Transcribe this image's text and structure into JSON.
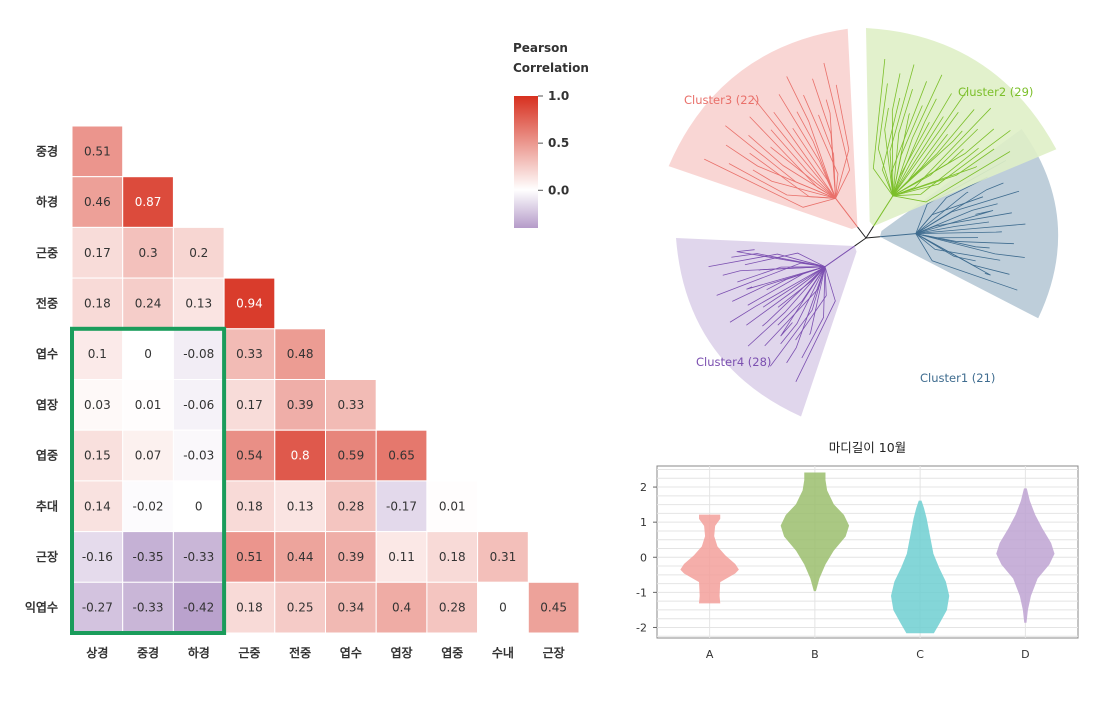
{
  "chart_data": [
    {
      "type": "heatmap",
      "title": "",
      "legend": {
        "title_line1": "Pearson",
        "title_line2": "Correlation",
        "ticks": [
          "1.0",
          "0.5",
          "0.0"
        ],
        "range": [
          -0.4,
          1.0
        ],
        "placement": "top-right"
      },
      "row_labels": [
        "중경",
        "하경",
        "근중",
        "전중",
        "엽수",
        "엽장",
        "엽중",
        "추대",
        "근장",
        "익엽수"
      ],
      "col_labels": [
        "상경",
        "중경",
        "하경",
        "근중",
        "전중",
        "엽수",
        "엽장",
        "엽중",
        "수내",
        "근장"
      ],
      "values": [
        [
          0.51
        ],
        [
          0.46,
          0.87
        ],
        [
          0.17,
          0.3,
          0.2
        ],
        [
          0.18,
          0.24,
          0.13,
          0.94
        ],
        [
          0.1,
          0,
          -0.08,
          0.33,
          0.48
        ],
        [
          0.03,
          0.01,
          -0.06,
          0.17,
          0.39,
          0.33
        ],
        [
          0.15,
          0.07,
          -0.03,
          0.54,
          0.8,
          0.59,
          0.65
        ],
        [
          0.14,
          -0.02,
          0,
          0.18,
          0.13,
          0.28,
          -0.17,
          0.01
        ],
        [
          -0.16,
          -0.35,
          -0.33,
          0.51,
          0.44,
          0.39,
          0.11,
          0.18,
          0.31
        ],
        [
          -0.27,
          -0.33,
          -0.42,
          0.18,
          0.25,
          0.34,
          0.4,
          0.28,
          0,
          0.45
        ]
      ],
      "highlight": {
        "rows": [
          4,
          9
        ],
        "cols": [
          0,
          2
        ],
        "color": "#1a9c5b"
      },
      "colors": {
        "high": "#d7301f",
        "mid": "#ffffff",
        "low": "#b59bc9"
      }
    },
    {
      "type": "dendrogram",
      "layout": "circular",
      "clusters": [
        {
          "name": "Cluster1 (21)",
          "color": "#3f6c8f",
          "fill": "#b7c9d6",
          "count": 21
        },
        {
          "name": "Cluster2 (29)",
          "color": "#7cbf2a",
          "fill": "#dff0c6",
          "count": 29
        },
        {
          "name": "Cluster3 (22)",
          "color": "#e9706a",
          "fill": "#f8d2cf",
          "count": 22
        },
        {
          "name": "Cluster4 (28)",
          "color": "#7b4fb0",
          "fill": "#ddd2ea",
          "count": 28
        }
      ]
    },
    {
      "type": "violin",
      "title": "마디길이 10월",
      "categories": [
        "A",
        "B",
        "C",
        "D"
      ],
      "ylim": [
        -2.3,
        2.6
      ],
      "yticks": [
        2,
        1,
        0,
        -1,
        -2
      ],
      "grid": true,
      "series": [
        {
          "category": "A",
          "color": "#f4a09c",
          "min": -1.3,
          "max": 1.2,
          "profile": [
            [
              -1.3,
              0.3
            ],
            [
              -1.1,
              0.28
            ],
            [
              -0.7,
              0.3
            ],
            [
              -0.45,
              0.75
            ],
            [
              -0.35,
              0.85
            ],
            [
              -0.2,
              0.75
            ],
            [
              0.05,
              0.45
            ],
            [
              0.3,
              0.22
            ],
            [
              0.6,
              0.12
            ],
            [
              0.9,
              0.15
            ],
            [
              1.1,
              0.3
            ],
            [
              1.2,
              0.3
            ]
          ]
        },
        {
          "category": "B",
          "color": "#9cbf6e",
          "min": -0.95,
          "max": 2.4,
          "profile": [
            [
              -0.95,
              0.02
            ],
            [
              -0.6,
              0.12
            ],
            [
              -0.2,
              0.3
            ],
            [
              0.2,
              0.55
            ],
            [
              0.6,
              0.9
            ],
            [
              0.9,
              1.0
            ],
            [
              1.2,
              0.85
            ],
            [
              1.5,
              0.55
            ],
            [
              1.9,
              0.35
            ],
            [
              2.2,
              0.3
            ],
            [
              2.4,
              0.3
            ]
          ]
        },
        {
          "category": "C",
          "color": "#6fcfd2",
          "min": -2.15,
          "max": 1.6,
          "profile": [
            [
              -2.15,
              0.4
            ],
            [
              -1.9,
              0.55
            ],
            [
              -1.5,
              0.78
            ],
            [
              -1.1,
              0.85
            ],
            [
              -0.7,
              0.75
            ],
            [
              -0.3,
              0.55
            ],
            [
              0.1,
              0.38
            ],
            [
              0.6,
              0.28
            ],
            [
              1.1,
              0.18
            ],
            [
              1.4,
              0.1
            ],
            [
              1.6,
              0.03
            ]
          ]
        },
        {
          "category": "D",
          "color": "#bfa4d3",
          "min": -1.85,
          "max": 1.95,
          "profile": [
            [
              -1.85,
              0.02
            ],
            [
              -1.5,
              0.06
            ],
            [
              -1.1,
              0.15
            ],
            [
              -0.6,
              0.35
            ],
            [
              -0.2,
              0.7
            ],
            [
              0.1,
              0.85
            ],
            [
              0.4,
              0.75
            ],
            [
              0.8,
              0.5
            ],
            [
              1.2,
              0.28
            ],
            [
              1.6,
              0.12
            ],
            [
              1.95,
              0.03
            ]
          ]
        }
      ]
    }
  ]
}
